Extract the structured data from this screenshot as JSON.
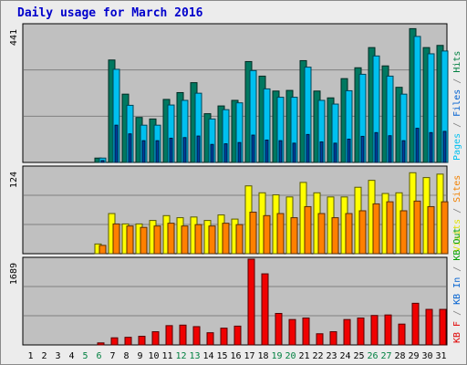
{
  "title": "Daily usage for March 2016",
  "chart_data": {
    "type": "bar",
    "categories": [
      "1",
      "2",
      "3",
      "4",
      "5",
      "6",
      "7",
      "8",
      "9",
      "10",
      "11",
      "12",
      "13",
      "14",
      "15",
      "16",
      "17",
      "18",
      "19",
      "20",
      "21",
      "22",
      "23",
      "24",
      "25",
      "26",
      "27",
      "28",
      "29",
      "30",
      "31"
    ],
    "weekend_days": [
      "5",
      "6",
      "12",
      "13",
      "19",
      "20",
      "26",
      "27"
    ],
    "panels": [
      {
        "name": "requests",
        "max_label": "441",
        "ylim": [
          0,
          441
        ],
        "legend": [
          {
            "text": "Pages",
            "color": "#00c0f0"
          },
          {
            "text": " / ",
            "color": "#808080"
          },
          {
            "text": "Files",
            "color": "#0060d0"
          },
          {
            "text": " / ",
            "color": "#808080"
          },
          {
            "text": "Hits",
            "color": "#008040"
          }
        ],
        "series": [
          {
            "name": "Hits",
            "color": "#007860",
            "values": [
              0,
              0,
              0,
              0,
              0,
              14,
              330,
              220,
              145,
              140,
              203,
              225,
              257,
              157,
              182,
              200,
              325,
              278,
              230,
              232,
              328,
              230,
              208,
              270,
              305,
              370,
              311,
              242,
              431,
              370,
              377
            ]
          },
          {
            "name": "Files",
            "color": "#00c0f0",
            "values": [
              0,
              0,
              0,
              0,
              0,
              14,
              300,
              184,
              120,
              120,
              185,
              200,
              223,
              140,
              170,
              192,
              296,
              237,
              210,
              210,
              307,
              200,
              188,
              231,
              284,
              343,
              278,
              220,
              406,
              350,
              359
            ]
          },
          {
            "name": "Pages",
            "color": "#0040a0",
            "values": [
              0,
              0,
              0,
              0,
              0,
              6,
              120,
              92,
              70,
              70,
              78,
              80,
              85,
              58,
              60,
              64,
              88,
              72,
              70,
              62,
              90,
              66,
              62,
              75,
              84,
              96,
              86,
              70,
              110,
              96,
              100
            ]
          }
        ]
      },
      {
        "name": "visits",
        "max_label": "124",
        "ylim": [
          0,
          124
        ],
        "legend": [
          {
            "text": "Visits",
            "color": "#e0e000"
          },
          {
            "text": " / ",
            "color": "#808080"
          },
          {
            "text": "Sites",
            "color": "#f08000"
          }
        ],
        "series": [
          {
            "name": "Visits",
            "color": "#ffff00",
            "values": [
              0,
              0,
              0,
              0,
              0,
              14,
              58,
              43,
              43,
              48,
              55,
              52,
              53,
              48,
              56,
              50,
              98,
              88,
              85,
              82,
              103,
              88,
              82,
              82,
              96,
              106,
              87,
              88,
              117,
              110,
              115
            ]
          },
          {
            "name": "Sites",
            "color": "#ff8000",
            "values": [
              0,
              0,
              0,
              0,
              0,
              12,
              43,
              40,
              38,
              40,
              44,
              40,
              42,
              40,
              44,
              42,
              60,
              55,
              58,
              52,
              68,
              58,
              52,
              58,
              62,
              72,
              75,
              62,
              76,
              68,
              75
            ]
          }
        ]
      },
      {
        "name": "kbytes",
        "max_label": "1689",
        "ylim": [
          0,
          1689
        ],
        "legend": [
          {
            "text": "KB F",
            "color": "#e00000"
          },
          {
            "text": " / ",
            "color": "#808080"
          },
          {
            "text": "KB In",
            "color": "#0060d0"
          },
          {
            "text": " / ",
            "color": "#808080"
          },
          {
            "text": "KB Out",
            "color": "#00a000"
          }
        ],
        "series": [
          {
            "name": "KB F",
            "color": "#f00000",
            "values": [
              0,
              0,
              0,
              0,
              0,
              40,
              140,
              150,
              170,
              260,
              380,
              390,
              360,
              240,
              330,
              370,
              1689,
              1400,
              620,
              500,
              530,
              220,
              260,
              500,
              530,
              580,
              590,
              410,
              820,
              700,
              700
            ]
          }
        ]
      }
    ]
  }
}
